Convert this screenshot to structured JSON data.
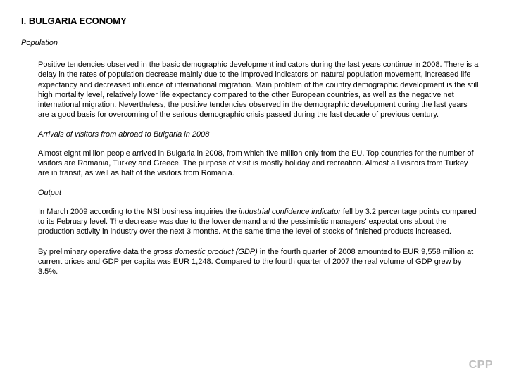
{
  "title": "I. BULGARIA ECONOMY",
  "sub_population": "Population",
  "para_pop": "Positive tendencies observed in the basic demographic development indicators during the last years continue in 2008. There is a delay in the rates of population decrease mainly due to the improved indicators on natural population movement, increased life expectancy and decreased influence of international migration. Main problem of the country demographic development is the still high mortality level, relatively lower life expectancy compared to the other European countries, as well as the negative net international migration. Nevertheless, the positive tendencies observed in the demographic development during the last years are a good basis for overcoming of the serious demographic crisis passed during the last decade of previous century.",
  "sub_arrivals": "Arrivals of visitors from abroad to Bulgaria in 2008",
  "para_arr": "Almost eight million people arrived in Bulgaria in 2008, from which five million only from the EU. Top countries for the number of visitors are Romania, Turkey and Greece. The purpose of visit is mostly holiday and recreation. Almost all visitors from Turkey are in transit, as well as half of the visitors from Romania.",
  "sub_output": "Output",
  "output1_a": "In March 2009 according to the NSI business inquiries the ",
  "output1_italic": "industrial confidence indicator",
  "output1_b": " fell by 3.2 percentage points compared to its February level. The decrease was due to the lower demand and the pessimistic managers' expectations about the production activity in industry over the next 3 months. At the same time the level of stocks of finished products increased.",
  "output2_a": "By preliminary operative data the ",
  "output2_italic": "gross domestic product (GDP)",
  "output2_b": " in the fourth quarter of 2008 amounted to EUR 9,558 million at current prices and GDP per capita was EUR 1,248. Compared to the fourth quarter of 2007 the real volume of GDP grew by 3.5%.",
  "footer": "CPP",
  "colors": {
    "text": "#000000",
    "bg": "#ffffff",
    "logo": "#bfbfbf"
  }
}
